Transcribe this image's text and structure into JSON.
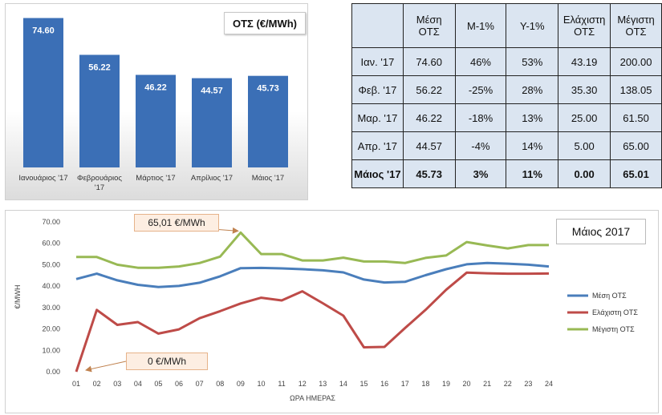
{
  "bar_chart": {
    "title": "ΟΤΣ (€/MWh)",
    "bar_color": "#3b6fb6",
    "label_color": "#ffffff"
  },
  "table": {
    "headers": [
      "",
      "Μέση ΟΤΣ",
      "Μ-1%",
      "Υ-1%",
      "Ελάχιστη ΟΤΣ",
      "Μέγιστη ΟΤΣ"
    ],
    "rows": [
      [
        "Ιαν. '17",
        "74.60",
        "46%",
        "53%",
        "43.19",
        "200.00"
      ],
      [
        "Φεβ. '17",
        "56.22",
        "-25%",
        "28%",
        "35.30",
        "138.05"
      ],
      [
        "Μαρ. '17",
        "46.22",
        "-18%",
        "13%",
        "25.00",
        "61.50"
      ],
      [
        "Απρ. '17",
        "44.57",
        "-4%",
        "14%",
        "5.00",
        "65.00"
      ],
      [
        "Μάιος '17",
        "45.73",
        "3%",
        "11%",
        "0.00",
        "65.01"
      ]
    ],
    "header_bg": "#dbe5f1"
  },
  "line_chart": {
    "month_label": "Μάιος 2017",
    "annotation_max": "65,01 €/MWh",
    "annotation_min": "0 €/MWh",
    "colors": {
      "mean": "#4a7ebb",
      "min": "#be4b48",
      "max": "#98b954"
    }
  },
  "chart_data": [
    {
      "type": "bar",
      "title": "ΟΤΣ (€/MWh)",
      "categories": [
        "Ιανουάριος '17",
        "Φεβρουάριος '17",
        "Μάρτιος '17",
        "Απρίλιος '17",
        "Μάιος '17"
      ],
      "values": [
        74.6,
        56.22,
        46.22,
        44.57,
        45.73
      ],
      "data_labels": [
        "74.60",
        "56.22",
        "46.22",
        "44.57",
        "45.73"
      ],
      "ylim": [
        0,
        80
      ],
      "grid": false
    },
    {
      "type": "line",
      "x": [
        "01",
        "02",
        "03",
        "04",
        "05",
        "06",
        "07",
        "08",
        "09",
        "10",
        "11",
        "12",
        "13",
        "14",
        "15",
        "16",
        "17",
        "18",
        "19",
        "20",
        "21",
        "22",
        "23",
        "24"
      ],
      "xlabel": "ΩΡΑ ΗΜΕΡΑΣ",
      "ylabel": "€/MWH",
      "ylim": [
        0,
        70
      ],
      "yticks": [
        "0.00",
        "10.00",
        "20.00",
        "30.00",
        "40.00",
        "50.00",
        "60.00",
        "70.00"
      ],
      "grid": false,
      "legend_position": "right",
      "series": [
        {
          "name": "Μέση ΟΤΣ",
          "values": [
            43.3,
            45.8,
            42.7,
            40.6,
            39.6,
            40.1,
            41.6,
            44.6,
            48.4,
            48.5,
            48.3,
            47.9,
            47.4,
            46.4,
            43.1,
            41.7,
            42.0,
            45.1,
            47.9,
            50.2,
            50.8,
            50.5,
            50.0,
            49.2
          ]
        },
        {
          "name": "Ελάχιστη ΟΤΣ",
          "values": [
            0,
            28.9,
            21.9,
            23.2,
            17.8,
            19.8,
            25.0,
            28.3,
            31.9,
            34.6,
            33.3,
            37.6,
            32.0,
            26.2,
            11.4,
            11.6,
            20.4,
            28.9,
            38.3,
            46.3,
            46.0,
            45.8,
            45.8,
            45.9
          ]
        },
        {
          "name": "Μέγιστη ΟΤΣ",
          "values": [
            53.6,
            53.6,
            50.0,
            48.6,
            48.6,
            49.2,
            50.8,
            53.8,
            65.01,
            55.0,
            55.0,
            52.0,
            52.0,
            53.3,
            51.5,
            51.5,
            50.8,
            53.2,
            54.3,
            60.6,
            59.0,
            57.6,
            59.2,
            59.2
          ]
        }
      ]
    }
  ]
}
